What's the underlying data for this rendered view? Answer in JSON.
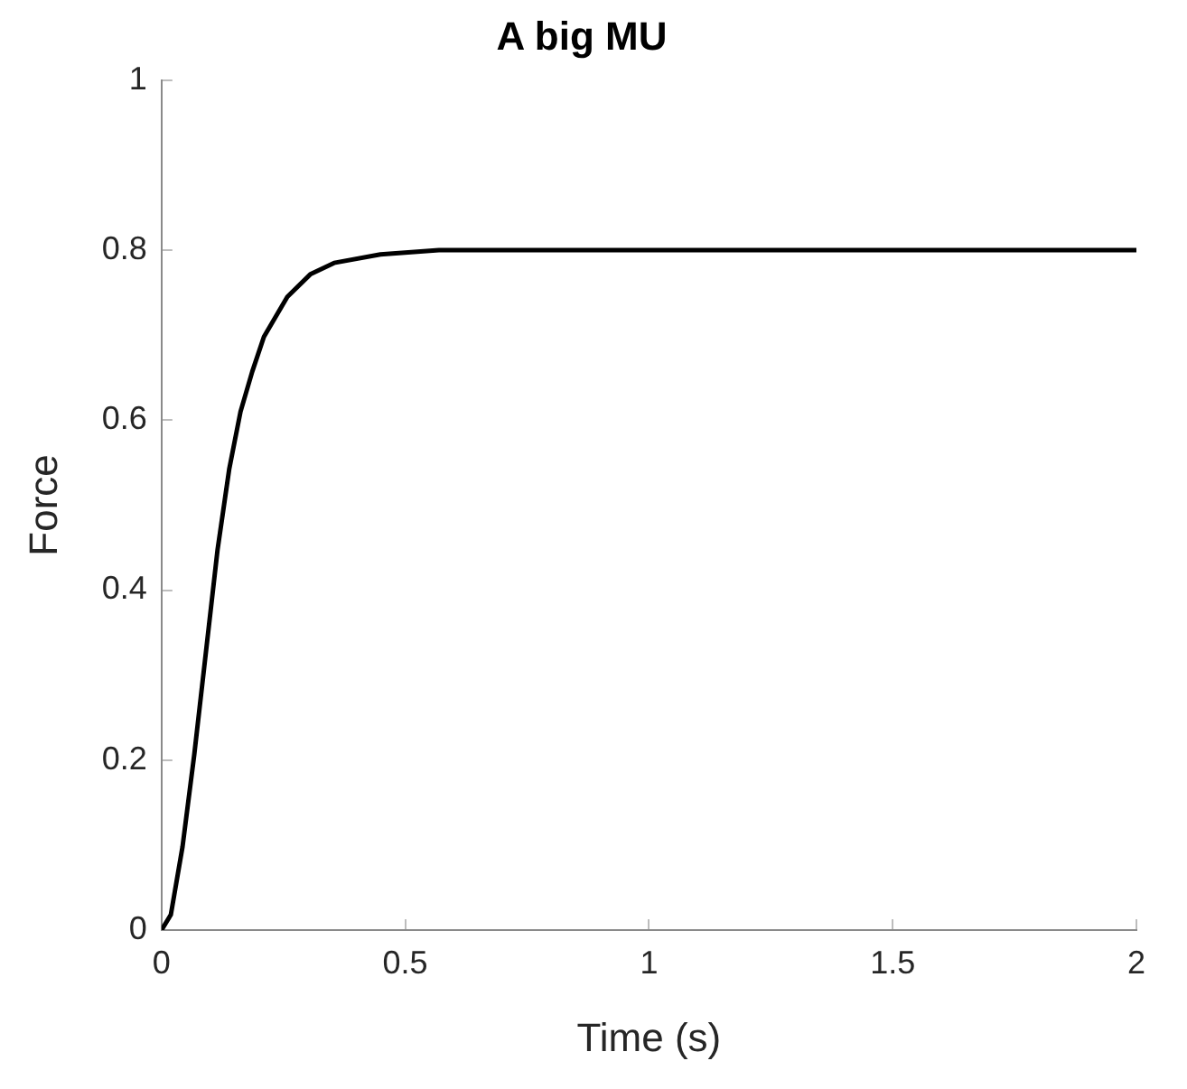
{
  "chart_data": {
    "type": "line",
    "title": "A big MU",
    "xlabel": "Time (s)",
    "ylabel": "Force",
    "x": [
      0,
      0.019,
      0.043,
      0.067,
      0.091,
      0.115,
      0.139,
      0.162,
      0.186,
      0.21,
      0.258,
      0.306,
      0.354,
      0.449,
      0.569,
      0.8,
      1.2,
      1.6,
      2
    ],
    "series": [
      {
        "color": "#000000",
        "values": [
          0,
          0.018,
          0.098,
          0.206,
          0.327,
          0.448,
          0.543,
          0.61,
          0.657,
          0.698,
          0.745,
          0.772,
          0.785,
          0.795,
          0.8,
          0.8,
          0.8,
          0.8,
          0.8
        ]
      }
    ],
    "xlim": [
      0,
      2
    ],
    "ylim": [
      0,
      1
    ],
    "xticks": [
      0,
      0.5,
      1,
      1.5,
      2
    ],
    "yticks": [
      0,
      0.2,
      0.4,
      0.6,
      0.8,
      1
    ],
    "grid": false,
    "legend": false,
    "marker": "none",
    "line_style": "solid"
  }
}
